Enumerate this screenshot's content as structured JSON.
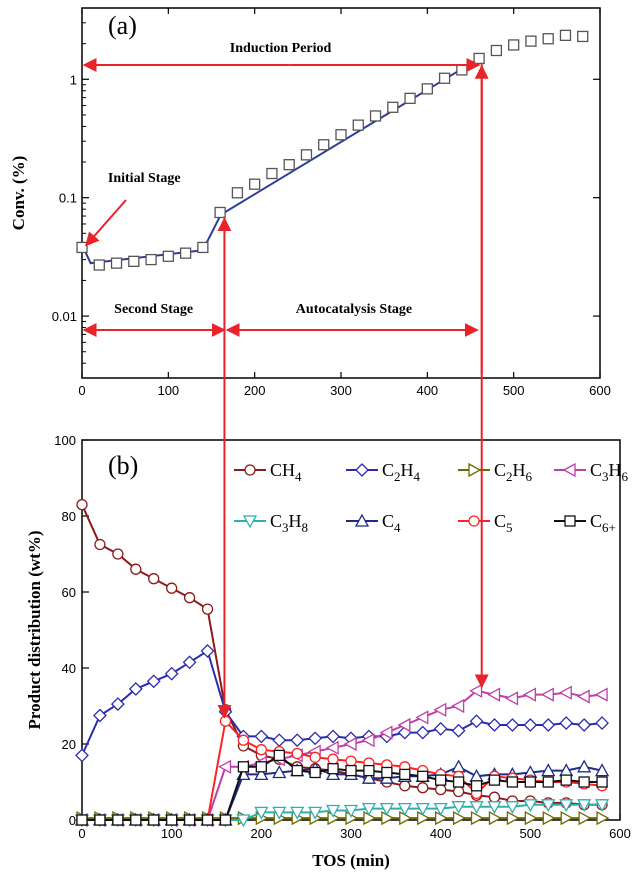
{
  "chart_data": [
    {
      "panel": "(a)",
      "type": "scatter",
      "xlabel": "",
      "ylabel": "Conv. (%)",
      "xlim": [
        0,
        600
      ],
      "ylim": [
        0.003,
        4
      ],
      "yscale": "log",
      "xticks": [
        "0",
        "100",
        "200",
        "300",
        "400",
        "500",
        "600"
      ],
      "yticks": [
        {
          "v": 0.01,
          "label": "0.01"
        },
        {
          "v": 0.1,
          "label": "0.1"
        },
        {
          "v": 1,
          "label": "1"
        }
      ],
      "series": [
        {
          "marker": "square",
          "x": [
            0,
            20,
            40,
            60,
            80,
            100,
            120,
            140,
            160,
            180,
            200,
            220,
            240,
            260,
            280,
            300,
            320,
            340,
            360,
            380,
            400,
            420,
            440,
            460,
            480,
            500,
            520,
            540,
            560,
            580
          ],
          "y": [
            0.038,
            0.027,
            0.028,
            0.029,
            0.03,
            0.032,
            0.034,
            0.038,
            0.075,
            0.11,
            0.13,
            0.16,
            0.19,
            0.23,
            0.28,
            0.34,
            0.41,
            0.49,
            0.58,
            0.69,
            0.83,
            1.02,
            1.2,
            1.5,
            1.75,
            1.95,
            2.1,
            2.2,
            2.35,
            2.3
          ]
        }
      ],
      "fits": [
        {
          "x": [
            0,
            10,
            140
          ],
          "y": [
            0.04,
            0.028,
            0.036
          ]
        },
        {
          "x": [
            140,
            160,
            165
          ],
          "y": [
            0.036,
            0.07,
            0.075
          ]
        },
        {
          "x": [
            165,
            460
          ],
          "y": [
            0.075,
            1.5
          ]
        }
      ],
      "annotations": {
        "panel_tag": "(a)",
        "induction": "Induction Period",
        "initial": "Initial Stage",
        "second": "Second Stage",
        "autocatalysis": "Autocatalysis Stage"
      },
      "colors": {
        "fit": "#2e3d9a",
        "arrow": "#e8242a",
        "marker": "#555555"
      }
    },
    {
      "panel": "(b)",
      "type": "line",
      "xlabel": "TOS (min)",
      "ylabel": "Product distribution (wt%)",
      "xlim": [
        0,
        600
      ],
      "ylim": [
        0,
        100
      ],
      "xticks": [
        "0",
        "100",
        "200",
        "300",
        "400",
        "500",
        "600"
      ],
      "yticks": [
        "0",
        "20",
        "40",
        "60",
        "80",
        "100"
      ],
      "x": [
        0,
        20,
        40,
        60,
        80,
        100,
        120,
        140,
        160,
        180,
        200,
        220,
        240,
        260,
        280,
        300,
        320,
        340,
        360,
        380,
        400,
        420,
        440,
        460,
        480,
        500,
        520,
        540,
        560,
        580
      ],
      "series": [
        {
          "name": "CH",
          "sub": "4",
          "color": "#8b1a1a",
          "marker": "circle",
          "values": [
            83,
            72.5,
            70,
            66,
            63.5,
            61,
            58.5,
            55.5,
            29,
            19.5,
            17,
            16,
            14,
            13.5,
            13,
            12,
            11,
            10,
            9,
            8.5,
            8,
            7.5,
            6.5,
            6,
            5,
            5,
            4.5,
            4.5,
            4,
            4
          ]
        },
        {
          "name": "C",
          "sub": "2",
          "name2": "H",
          "sub2": "4",
          "color": "#2b2bb0",
          "marker": "diamond",
          "values": [
            17,
            27.5,
            30.5,
            34.5,
            36.5,
            38.5,
            41.5,
            44.5,
            28.5,
            22,
            22,
            21,
            21,
            21.5,
            22,
            21.5,
            22,
            22,
            23,
            23,
            24,
            23.5,
            26,
            25,
            25,
            25,
            25,
            25.5,
            25,
            25.5
          ]
        },
        {
          "name": "C",
          "sub": "2",
          "name2": "H",
          "sub2": "6",
          "color": "#6b6b00",
          "marker": "triangle-right",
          "values": [
            0.5,
            0.5,
            0.5,
            0.5,
            0.5,
            0.5,
            0.5,
            0.5,
            0.5,
            0.5,
            0.5,
            0.5,
            0.5,
            0.5,
            0.5,
            0.5,
            0.5,
            0.5,
            0.5,
            0.5,
            0.5,
            0.5,
            0.5,
            0.5,
            0.5,
            0.5,
            0.5,
            0.5,
            0.5,
            0.5
          ]
        },
        {
          "name": "C",
          "sub": "3",
          "name2": "H",
          "sub2": "6",
          "color": "#c13dab",
          "marker": "triangle-left",
          "values": [
            0,
            0,
            0,
            0,
            0,
            0,
            0,
            0,
            14,
            14,
            15,
            16,
            17,
            18,
            19,
            20,
            21,
            23,
            25,
            27,
            29,
            30,
            34,
            33,
            32,
            33,
            33,
            33.5,
            32.5,
            33
          ]
        },
        {
          "name": "C",
          "sub": "3",
          "name2": "H",
          "sub2": "8",
          "color": "#2fb0b0",
          "marker": "triangle-down",
          "values": [
            0,
            0,
            0,
            0,
            0,
            0,
            0,
            0,
            0,
            0,
            2,
            2,
            2,
            2,
            2.5,
            2.5,
            3,
            3,
            3,
            3,
            3,
            3.5,
            3.5,
            3.5,
            3.5,
            4,
            4,
            4,
            4,
            4
          ]
        },
        {
          "name": "C",
          "sub": "4",
          "color": "#1f2a8a",
          "marker": "triangle-up",
          "values": [
            0,
            0,
            0,
            0,
            0,
            0,
            0,
            0,
            0,
            12,
            12,
            12.5,
            13,
            13.5,
            12,
            12,
            11,
            11,
            11.5,
            11.5,
            12,
            14,
            11.5,
            12,
            12,
            12.5,
            13,
            13,
            14,
            13
          ]
        },
        {
          "name": "C",
          "sub": "5",
          "color": "#ff2222",
          "marker": "circle",
          "values": [
            0,
            0,
            0,
            0,
            0,
            0,
            0,
            0,
            26,
            21,
            18.5,
            18,
            17.5,
            16.5,
            16,
            15.5,
            15,
            14.5,
            14,
            13,
            12,
            11.5,
            7,
            11.5,
            11,
            10.5,
            10,
            10,
            9.5,
            9
          ]
        },
        {
          "name": "C",
          "sub": "6+",
          "color": "#111111",
          "marker": "square",
          "values": [
            0,
            0,
            0,
            0,
            0,
            0,
            0,
            0,
            0,
            14,
            14,
            17,
            13,
            12.5,
            13.5,
            13,
            13,
            12.5,
            12,
            11.5,
            10.5,
            10,
            9,
            10.5,
            10,
            10,
            10,
            10.5,
            10,
            10
          ]
        }
      ],
      "annotations": {
        "panel_tag": "(b)"
      },
      "legend": "top-right"
    }
  ]
}
